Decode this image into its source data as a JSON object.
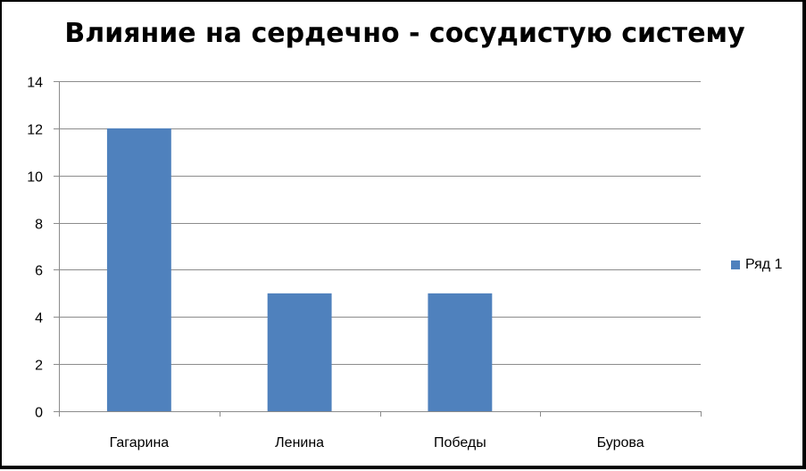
{
  "chart_data": {
    "type": "bar",
    "title": "Влияние на сердечно - сосудистую систему",
    "categories": [
      "Гагарина",
      "Ленина",
      "Победы",
      "Бурова"
    ],
    "series": [
      {
        "name": "Ряд 1",
        "values": [
          12,
          5,
          5,
          0
        ],
        "color": "#4F81BD"
      }
    ],
    "ylim": [
      0,
      14
    ],
    "yticks": [
      0,
      2,
      4,
      6,
      8,
      10,
      12,
      14
    ],
    "grid": true,
    "legend_position": "right",
    "xlabel": "",
    "ylabel": ""
  },
  "colors": {
    "bar": "#4F81BD",
    "grid": "#8C8C8C",
    "axis": "#8C8C8C"
  }
}
